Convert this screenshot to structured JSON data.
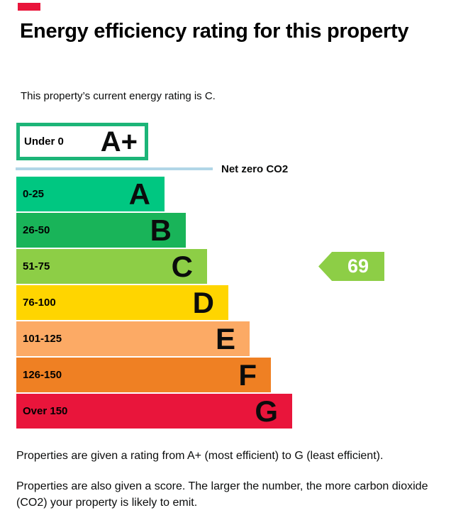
{
  "marker": {
    "color": "#e9153b"
  },
  "header": {
    "title": "Energy efficiency rating for this property",
    "subtitle": "This property’s current energy rating is C."
  },
  "chart_data": {
    "type": "bar",
    "title": "Energy efficiency rating for this property",
    "net_zero_label": "Net zero CO2",
    "net_zero_line_color": "#b1d6e7",
    "legend_position": "none",
    "bands": [
      {
        "letter": "A+",
        "range": "Under 0",
        "color": "#ffffff",
        "border_color": "#1cb578",
        "outlined": true
      },
      {
        "letter": "A",
        "range": "0-25",
        "color": "#00c781"
      },
      {
        "letter": "B",
        "range": "26-50",
        "color": "#19b459"
      },
      {
        "letter": "C",
        "range": "51-75",
        "color": "#8dce46"
      },
      {
        "letter": "D",
        "range": "76-100",
        "color": "#ffd500"
      },
      {
        "letter": "E",
        "range": "101-125",
        "color": "#fcaa65"
      },
      {
        "letter": "F",
        "range": "126-150",
        "color": "#ef8023"
      },
      {
        "letter": "G",
        "range": "Over 150",
        "color": "#e9153b"
      }
    ],
    "current": {
      "score": "69",
      "band": "C",
      "color": "#8dce46",
      "text_color": "#ffffff"
    }
  },
  "footer": {
    "para1": "Properties are given a rating from A+ (most efficient) to G (least efficient).",
    "para2": "Properties are also given a score. The larger the number, the more carbon dioxide (CO2) your property is likely to emit."
  }
}
